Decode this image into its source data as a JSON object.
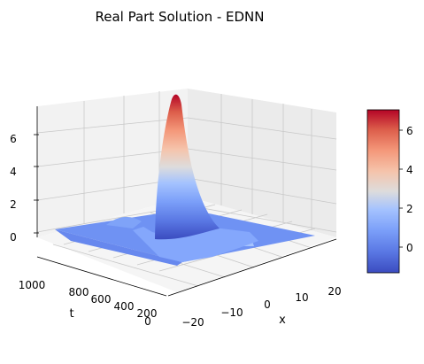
{
  "chart_data": {
    "type": "surface",
    "title": "Real Part Solution - EDNN",
    "xlabel": "x",
    "ylabel": "t",
    "zlabel": "",
    "x_ticks": [
      "−20",
      "−10",
      "0",
      "10",
      "20"
    ],
    "t_ticks": [
      "1000",
      "800",
      "600",
      "400",
      "200",
      "0"
    ],
    "z_ticks": [
      "0",
      "2",
      "4",
      "6"
    ],
    "xlim": [
      -20,
      20
    ],
    "tlim": [
      0,
      1000
    ],
    "zlim": [
      -1.2,
      7.2
    ],
    "colormap": "coolwarm",
    "colorbar": {
      "ticks": [
        "0",
        "2",
        "4",
        "6"
      ],
      "range": [
        -1.3,
        7.1
      ]
    },
    "surface_features": [
      {
        "description": "main peak",
        "x": 0,
        "t": 1000,
        "z": 7.0
      },
      {
        "description": "small bump",
        "x": -12,
        "t": 900,
        "z": 0.9
      },
      {
        "description": "small bump",
        "x": 9,
        "t": 200,
        "z": 0.8
      }
    ],
    "grid": true
  }
}
